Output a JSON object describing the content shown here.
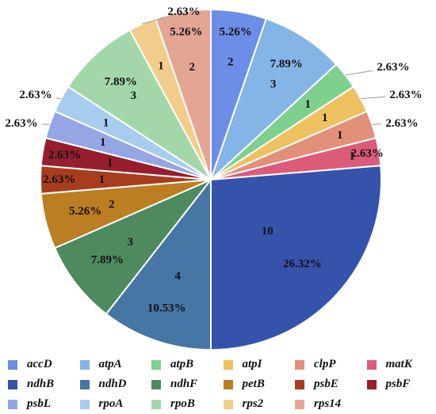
{
  "chart_data": {
    "type": "pie",
    "title": "",
    "slices": [
      {
        "name": "accD",
        "value": 2,
        "label": "5.26%",
        "color": "#6C8EE6"
      },
      {
        "name": "atpA",
        "value": 3,
        "label": "7.89%",
        "color": "#85B4E6"
      },
      {
        "name": "atpB",
        "value": 1,
        "label": "2.63%",
        "color": "#7DD08D"
      },
      {
        "name": "atpI",
        "value": 1,
        "label": "2.63%",
        "color": "#EDC160"
      },
      {
        "name": "clpP",
        "value": 1,
        "label": "2.63%",
        "color": "#E2907A"
      },
      {
        "name": "matK",
        "value": 1,
        "label": "2.63%",
        "color": "#DB5B78"
      },
      {
        "name": "ndhB",
        "value": 10,
        "label": "26.32%",
        "color": "#3553AB"
      },
      {
        "name": "ndhD",
        "value": 4,
        "label": "10.53%",
        "color": "#4676A3"
      },
      {
        "name": "ndhF",
        "value": 3,
        "label": "7.89%",
        "color": "#4F8A5F"
      },
      {
        "name": "petB",
        "value": 2,
        "label": "5.26%",
        "color": "#BB7E23"
      },
      {
        "name": "psbE",
        "value": 1,
        "label": "2.63%",
        "color": "#A83C1F"
      },
      {
        "name": "psbF",
        "value": 1,
        "label": "2.63%",
        "color": "#961E2E"
      },
      {
        "name": "psbL",
        "value": 1,
        "label": "2.63%",
        "color": "#94A6E3"
      },
      {
        "name": "rpoA",
        "value": 1,
        "label": "2.63%",
        "color": "#A8CCEE"
      },
      {
        "name": "rpoB",
        "value": 3,
        "label": "7.89%",
        "color": "#A3D7A9"
      },
      {
        "name": "rps2",
        "value": 1,
        "label": "2.63%",
        "color": "#F2CD8A"
      },
      {
        "name": "rps14",
        "value": 2,
        "label": "5.26%",
        "color": "#E4A595"
      }
    ],
    "legend": {
      "placement": "bottom"
    }
  }
}
